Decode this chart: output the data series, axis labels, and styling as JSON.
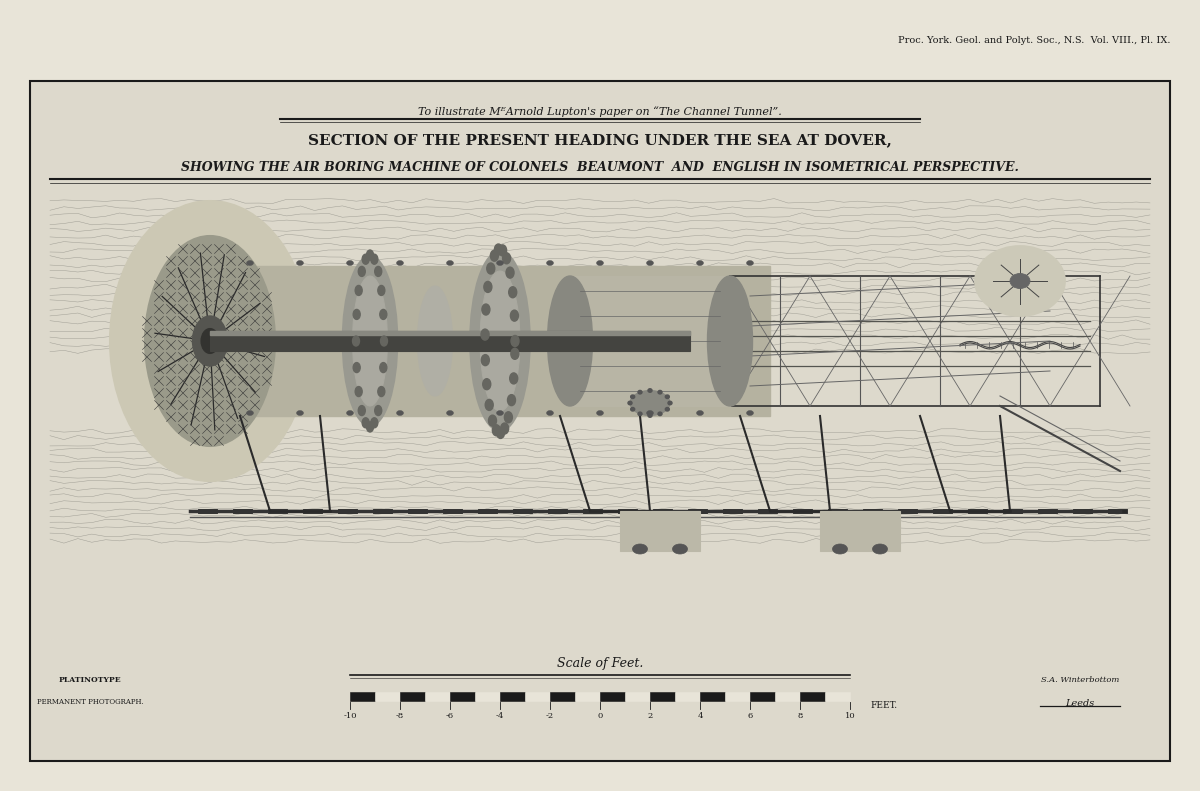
{
  "background_color": "#e8e4d8",
  "page_background": "#e8e4d8",
  "border_color": "#1a1a1a",
  "header_text": "Proc. York. Geol. and Polyt. Soc., N.S.  Vol. VIII., Pl. IX.",
  "subtitle_italic": "To illustrate MᴱArnold Lupton's paper on “The Channel Tunnel”.",
  "title_line1": "SECTION OF THE PRESENT HEADING UNDER THE SEA AT DOVER,",
  "title_line2": "SHOWING THE AIR BORING MACHINE OF COLONELS  BEAUMONT  AND  ENGLISH IN ISOMETRICAL PERSPECTIVE.",
  "scale_label": "Scale of Feet.",
  "platinotype_line1": "PLATINOTYPE",
  "platinotype_line2": "PERMANENT PHOTOGRAPH.",
  "attribution": "S.A. Winterbottom",
  "city": "Leeds",
  "text_color": "#1a1a1a",
  "line_color": "#1a1a1a",
  "diagram_bg": "#ddd9cc",
  "outer_bg": "#e8e4d8"
}
